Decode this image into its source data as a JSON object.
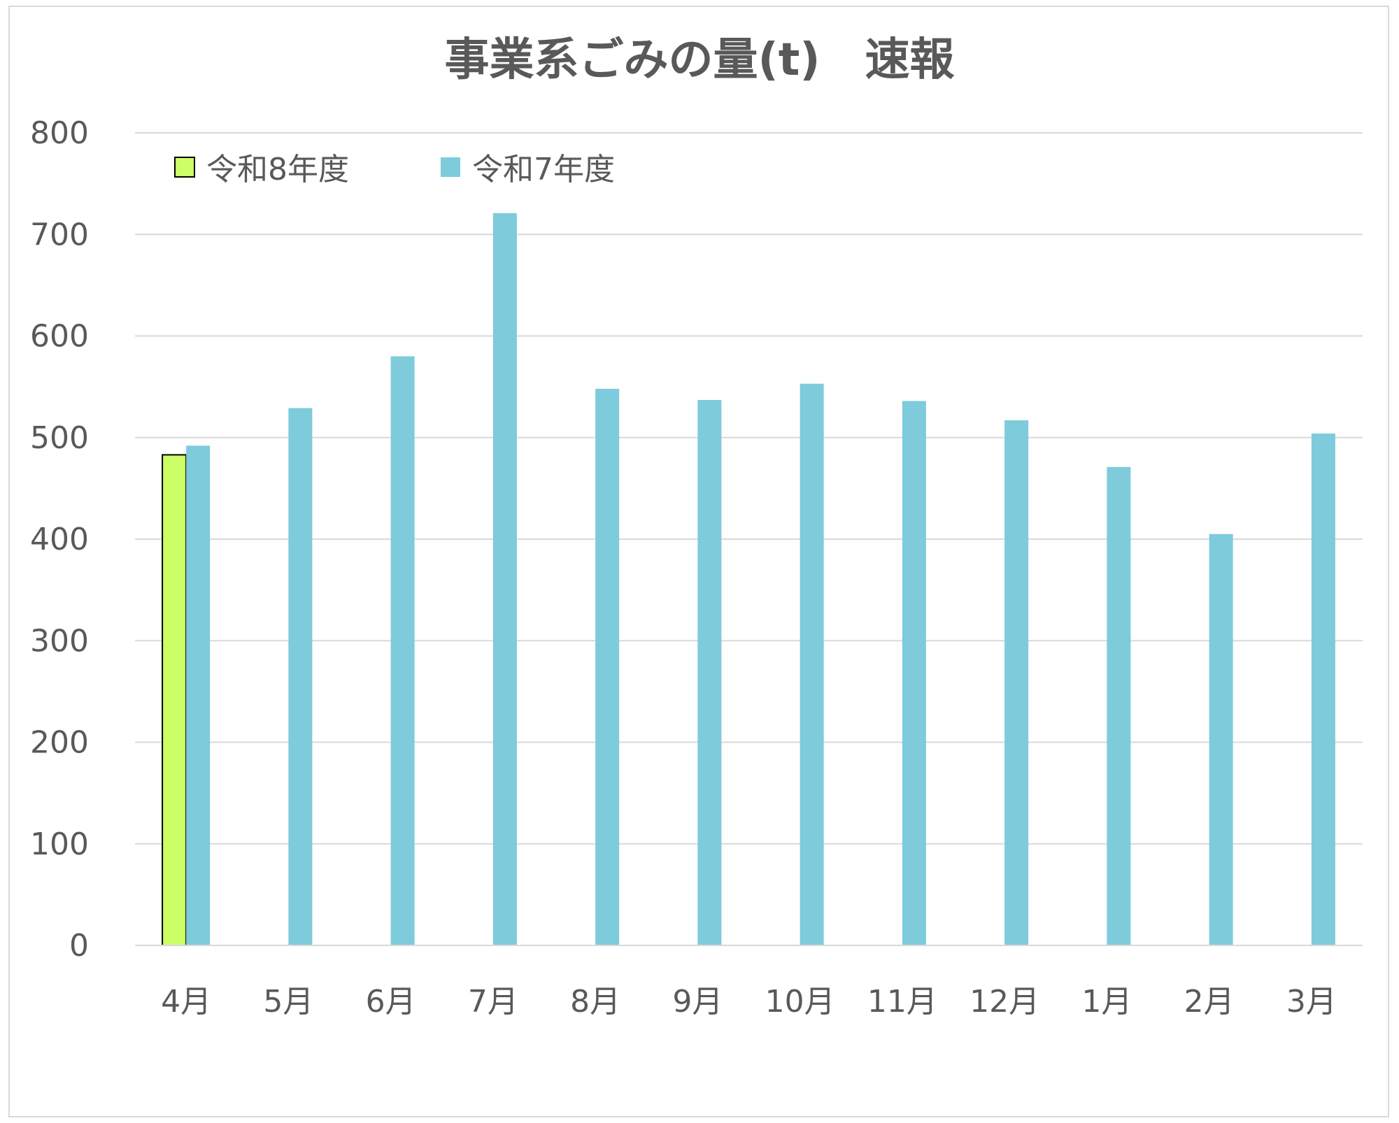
{
  "chart_data": {
    "type": "bar",
    "title": "事業系ごみの量(t)　速報",
    "categories": [
      "4月",
      "5月",
      "6月",
      "7月",
      "8月",
      "9月",
      "10月",
      "11月",
      "12月",
      "1月",
      "2月",
      "3月"
    ],
    "series": [
      {
        "name": "令和8年度",
        "values": [
          483,
          null,
          null,
          null,
          null,
          null,
          null,
          null,
          null,
          null,
          null,
          null
        ],
        "color": "#ccff66",
        "border": "#000000"
      },
      {
        "name": "令和7年度",
        "values": [
          492,
          529,
          580,
          721,
          548,
          537,
          553,
          536,
          517,
          471,
          405,
          504
        ],
        "color": "#7dcbdb"
      }
    ],
    "ylim": [
      0,
      800
    ],
    "yticks": [
      0,
      100,
      200,
      300,
      400,
      500,
      600,
      700,
      800
    ],
    "grid": true,
    "legend": "top-left"
  }
}
